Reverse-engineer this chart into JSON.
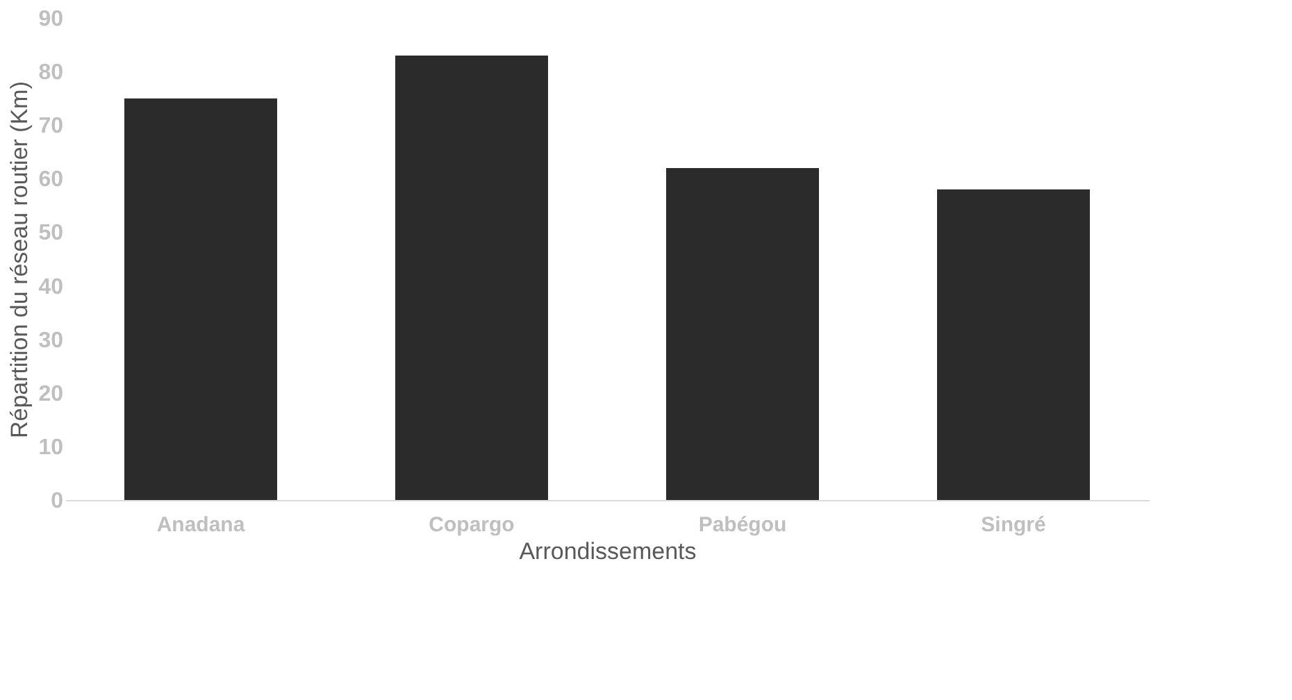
{
  "chart_data": {
    "type": "bar",
    "xlabel": "Arrondissements",
    "ylabel": "Répartition du réseau routier (Km)",
    "categories": [
      "Anadana",
      "Copargo",
      "Pabégou",
      "Singré"
    ],
    "values": [
      75,
      83,
      62,
      58
    ],
    "color": "#2b2b2b",
    "ylim": [
      0,
      90
    ],
    "yticks": [
      0,
      10,
      20,
      30,
      40,
      50,
      60,
      70,
      80,
      90
    ],
    "grid": false
  }
}
